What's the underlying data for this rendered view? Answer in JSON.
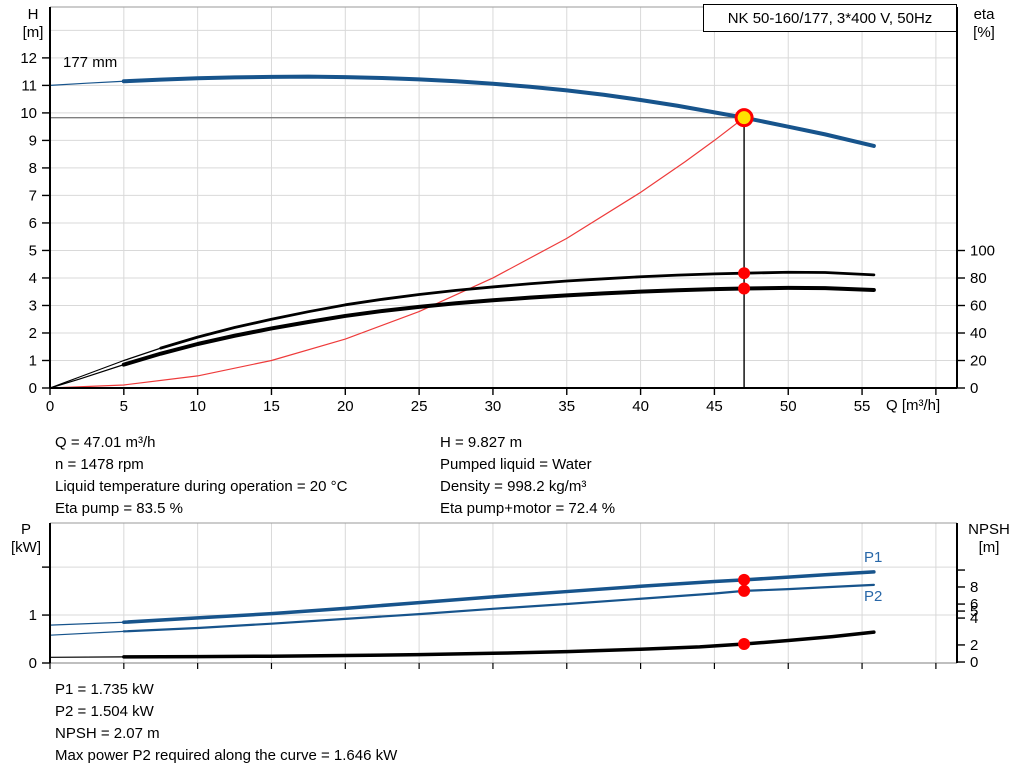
{
  "title_box": {
    "label": "NK 50-160/177, 3*400 V, 50Hz"
  },
  "colors": {
    "curve_blue": "#17548c",
    "curve_black": "#000000",
    "curve_red": "#ee3b3b",
    "grid": "#d9d9d9",
    "frame_dark": "#000000",
    "frame_light": "#999999",
    "op_line_gray": "#7f7f7f",
    "op_line_black": "#000000",
    "dot_red": "#ff0000",
    "duty_fill": "#ffe000",
    "duty_ring": "#ff0000",
    "blue_label": "#2867a8"
  },
  "top_chart": {
    "left_title": [
      "H",
      "[m]"
    ],
    "right_title": [
      "eta",
      "[%]"
    ],
    "x_title": "Q [m³/h]",
    "curve_label": "177 mm"
  },
  "bottom_chart": {
    "left_title": [
      "P",
      "[kW]"
    ],
    "right_title": [
      "NPSH",
      "[m]"
    ],
    "p1_label": "P1",
    "p2_label": "P2"
  },
  "info_top_left": [
    "Q = 47.01 m³/h",
    "n = 1478 rpm",
    "Liquid temperature during operation = 20 °C",
    "Eta pump = 83.5 %"
  ],
  "info_top_right": [
    "H = 9.827 m",
    "Pumped liquid = Water",
    "Density = 998.2 kg/m³",
    "Eta pump+motor = 72.4 %"
  ],
  "info_bottom": [
    "P1 = 1.735 kW",
    "P2 = 1.504 kW",
    "NPSH = 2.07 m",
    "Max power P2 required along the curve = 1.646 kW"
  ],
  "chart_data": [
    {
      "type": "line",
      "title": "NK 50-160/177, 3*400 V, 50Hz",
      "xlabel": "Q [m³/h]",
      "ylabel_left": "H [m]",
      "ylabel_right": "eta [%]",
      "x_range": [
        0,
        61.43
      ],
      "x_ticks": [
        0,
        5,
        10,
        15,
        20,
        25,
        30,
        35,
        40,
        45,
        50,
        55
      ],
      "x_tick_max": 60,
      "x_grid_step": 5,
      "left_range": [
        0,
        13.85
      ],
      "left_ticks": [
        0,
        1,
        2,
        3,
        4,
        5,
        6,
        7,
        8,
        9,
        10,
        11,
        12
      ],
      "left_grid_max": 13,
      "right_range": [
        0,
        277.1
      ],
      "right_ticks": [
        0,
        20,
        40,
        60,
        80,
        100
      ],
      "legend_position": "none",
      "grid": true,
      "series": [
        {
          "name": "system-curve",
          "axis": "left",
          "color_key": "curve_red",
          "width": 1.2,
          "thin_until": null,
          "points": [
            [
              0,
              0
            ],
            [
              5,
              0.11
            ],
            [
              10,
              0.44
            ],
            [
              15,
              1.0
            ],
            [
              20,
              1.78
            ],
            [
              25,
              2.78
            ],
            [
              30,
              4.0
            ],
            [
              35,
              5.44
            ],
            [
              40,
              7.11
            ],
            [
              43,
              8.22
            ],
            [
              45,
              9.0
            ],
            [
              47.01,
              9.827
            ]
          ]
        },
        {
          "name": "eta-pump",
          "axis": "right",
          "color_key": "curve_black",
          "width": 2.8,
          "thin_until": 7.5,
          "points": [
            [
              0,
              0
            ],
            [
              2,
              8
            ],
            [
              5,
              20
            ],
            [
              7.5,
              29
            ],
            [
              10,
              37
            ],
            [
              12.5,
              44
            ],
            [
              15,
              50
            ],
            [
              17.5,
              55.5
            ],
            [
              20,
              60.5
            ],
            [
              22.5,
              64.5
            ],
            [
              25,
              68
            ],
            [
              27.5,
              71
            ],
            [
              30,
              73.5
            ],
            [
              32.5,
              75.8
            ],
            [
              35,
              77.8
            ],
            [
              37.5,
              79.4
            ],
            [
              40,
              80.9
            ],
            [
              42.5,
              82.1
            ],
            [
              45,
              83
            ],
            [
              47.01,
              83.5
            ],
            [
              50,
              84.2
            ],
            [
              52.5,
              84
            ],
            [
              55.8,
              82.3
            ]
          ]
        },
        {
          "name": "eta-pump-motor",
          "axis": "right",
          "color_key": "curve_black",
          "width": 4,
          "thin_until": 5,
          "points": [
            [
              0,
              0
            ],
            [
              2,
              6.5
            ],
            [
              5,
              17
            ],
            [
              7.5,
              25
            ],
            [
              10,
              32
            ],
            [
              12.5,
              38
            ],
            [
              15,
              43.3
            ],
            [
              17.5,
              48
            ],
            [
              20,
              52.4
            ],
            [
              22.5,
              56
            ],
            [
              25,
              59
            ],
            [
              27.5,
              61.6
            ],
            [
              30,
              63.8
            ],
            [
              32.5,
              65.7
            ],
            [
              35,
              67.4
            ],
            [
              37.5,
              68.8
            ],
            [
              40,
              70.1
            ],
            [
              42.5,
              71.1
            ],
            [
              45,
              71.9
            ],
            [
              47.01,
              72.4
            ],
            [
              50,
              72.8
            ],
            [
              52.5,
              72.6
            ],
            [
              55.8,
              71.3
            ]
          ]
        },
        {
          "name": "head-177mm",
          "axis": "left",
          "color_key": "curve_blue",
          "width": 4,
          "thin_until": 5,
          "points": [
            [
              0,
              11.0
            ],
            [
              2.5,
              11.08
            ],
            [
              5,
              11.15
            ],
            [
              7.5,
              11.21
            ],
            [
              10,
              11.26
            ],
            [
              12.5,
              11.29
            ],
            [
              15,
              11.31
            ],
            [
              17.5,
              11.32
            ],
            [
              20,
              11.3
            ],
            [
              22.5,
              11.27
            ],
            [
              25,
              11.22
            ],
            [
              27.5,
              11.15
            ],
            [
              30,
              11.06
            ],
            [
              32.5,
              10.95
            ],
            [
              35,
              10.82
            ],
            [
              37.5,
              10.66
            ],
            [
              40,
              10.47
            ],
            [
              42.5,
              10.26
            ],
            [
              45,
              10.02
            ],
            [
              47.01,
              9.827
            ],
            [
              50,
              9.5
            ],
            [
              52.5,
              9.22
            ],
            [
              55.8,
              8.8
            ]
          ]
        }
      ],
      "operating_point": {
        "q": 47.01,
        "h": 9.827,
        "eta_dots": [
          83.5,
          72.4
        ]
      }
    },
    {
      "type": "line",
      "xlabel": "",
      "ylabel_left": "P [kW]",
      "ylabel_right": "NPSH [m]",
      "x_range": [
        0,
        61.43
      ],
      "x_tick_max": 60,
      "x_grid_step": 5,
      "left_range": [
        0,
        2.92
      ],
      "left_ticks": [
        [
          0,
          "0"
        ],
        [
          1,
          "1"
        ],
        [
          2,
          ""
        ]
      ],
      "left_grid": [
        1,
        2
      ],
      "right_map": [
        [
          0,
          0.007
        ],
        [
          2,
          0.129
        ],
        [
          4,
          0.321
        ],
        [
          5,
          0.371
        ],
        [
          6,
          0.421
        ],
        [
          8,
          0.543
        ],
        [
          10,
          0.664
        ]
      ],
      "right_unlabeled": [
        10
      ],
      "legend_position": "inline-right",
      "grid": true,
      "series": [
        {
          "name": "npsh",
          "axis": "right",
          "color_key": "curve_black",
          "width": 3.5,
          "thin_until": 5,
          "points": [
            [
              0,
              0.55
            ],
            [
              5,
              0.6
            ],
            [
              10,
              0.63
            ],
            [
              15,
              0.68
            ],
            [
              20,
              0.76
            ],
            [
              25,
              0.87
            ],
            [
              30,
              1.02
            ],
            [
              35,
              1.22
            ],
            [
              40,
              1.5
            ],
            [
              44,
              1.78
            ],
            [
              47.01,
              2.07
            ],
            [
              50,
              2.33
            ],
            [
              53,
              2.62
            ],
            [
              55.8,
              2.95
            ]
          ]
        },
        {
          "name": "p2",
          "axis": "left",
          "color_key": "curve_blue",
          "width": 2.2,
          "thin_until": 5,
          "points": [
            [
              0,
              0.58
            ],
            [
              5,
              0.66
            ],
            [
              10,
              0.73
            ],
            [
              15,
              0.82
            ],
            [
              20,
              0.92
            ],
            [
              25,
              1.02
            ],
            [
              30,
              1.13
            ],
            [
              35,
              1.23
            ],
            [
              40,
              1.34
            ],
            [
              45,
              1.45
            ],
            [
              47.01,
              1.504
            ],
            [
              50,
              1.54
            ],
            [
              52.5,
              1.58
            ],
            [
              55.8,
              1.63
            ]
          ]
        },
        {
          "name": "p1",
          "axis": "left",
          "color_key": "curve_blue",
          "width": 3.5,
          "thin_until": 5,
          "points": [
            [
              0,
              0.79
            ],
            [
              5,
              0.85
            ],
            [
              10,
              0.94
            ],
            [
              15,
              1.03
            ],
            [
              20,
              1.14
            ],
            [
              25,
              1.26
            ],
            [
              30,
              1.38
            ],
            [
              35,
              1.49
            ],
            [
              40,
              1.6
            ],
            [
              45,
              1.7
            ],
            [
              47.01,
              1.735
            ],
            [
              50,
              1.79
            ],
            [
              52.5,
              1.84
            ],
            [
              55.8,
              1.9
            ]
          ]
        }
      ],
      "operating_point": {
        "q": 47.01,
        "p_dots": [
          1.735,
          1.504
        ],
        "npsh_dot": 2.07
      }
    }
  ]
}
